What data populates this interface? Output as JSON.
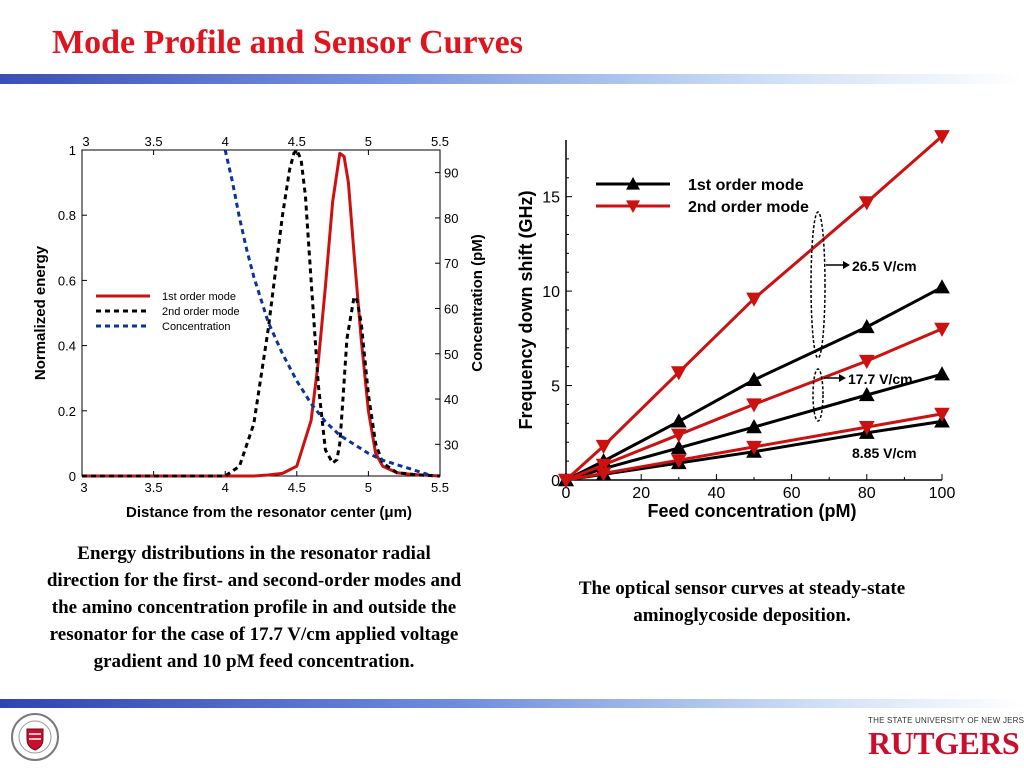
{
  "slide": {
    "title": "Mode Profile and Sensor Curves",
    "caption_left": "Energy distributions in the resonator radial direction for the first- and second-order modes and the amino concentration profile in and outside the resonator for the case of 17.7 V/cm applied voltage gradient and 10 pM feed concentration.",
    "caption_right": "The optical sensor curves at steady-state aminoglycoside deposition.",
    "logo_top": "THE STATE UNIVERSITY OF NEW JERSEY",
    "logo_main": "RUTGERS",
    "seal_label": "RUTGERS ENGINEERING"
  },
  "colors": {
    "title": "#e0141e",
    "red": "#cc1111",
    "black": "#000000",
    "blue": "#0a33a0"
  },
  "chart_data": [
    {
      "type": "line",
      "xlabel": "Distance from the resonator center (μm)",
      "ylabel": "Normalized energy",
      "y2label": "Concentration (pM)",
      "xlim": [
        3,
        5.5
      ],
      "ylim": [
        0,
        1
      ],
      "y2lim": [
        23,
        95
      ],
      "xticks": [
        "3",
        "3.5",
        "4",
        "4.5",
        "5",
        "5.5"
      ],
      "yticks": [
        "0",
        "0.2",
        "0.4",
        "0.6",
        "0.8",
        "1"
      ],
      "y2ticks": [
        "30",
        "40",
        "50",
        "60",
        "70",
        "80",
        "90"
      ],
      "legend_position": "center-left",
      "series": [
        {
          "name": "1st order mode",
          "axis": "left",
          "style": "solid",
          "color": "#cc1111",
          "x": [
            3.0,
            4.2,
            4.3,
            4.4,
            4.5,
            4.6,
            4.65,
            4.7,
            4.75,
            4.8,
            4.83,
            4.86,
            4.9,
            4.95,
            5.0,
            5.05,
            5.1,
            5.2,
            5.3,
            5.5
          ],
          "y": [
            0.0,
            0.0,
            0.003,
            0.008,
            0.03,
            0.17,
            0.35,
            0.58,
            0.84,
            0.99,
            0.98,
            0.9,
            0.68,
            0.42,
            0.2,
            0.07,
            0.03,
            0.01,
            0.005,
            0.0
          ]
        },
        {
          "name": "2nd order mode",
          "axis": "left",
          "style": "dashed",
          "color": "#000000",
          "x": [
            3.0,
            4.0,
            4.1,
            4.2,
            4.3,
            4.4,
            4.45,
            4.48,
            4.5,
            4.53,
            4.56,
            4.6,
            4.65,
            4.7,
            4.75,
            4.78,
            4.8,
            4.82,
            4.85,
            4.9,
            4.92,
            4.95,
            5.0,
            5.05,
            5.1,
            5.2,
            5.35,
            5.5
          ],
          "y": [
            0.0,
            0.0,
            0.03,
            0.16,
            0.45,
            0.8,
            0.94,
            0.99,
            1.0,
            0.97,
            0.86,
            0.6,
            0.28,
            0.08,
            0.04,
            0.05,
            0.1,
            0.22,
            0.42,
            0.55,
            0.54,
            0.47,
            0.25,
            0.1,
            0.04,
            0.01,
            0.003,
            0.0
          ]
        },
        {
          "name": "Concentration",
          "axis": "right",
          "style": "dashed",
          "color": "#0a33a0",
          "x": [
            4.0,
            4.05,
            4.1,
            4.15,
            4.2,
            4.3,
            4.4,
            4.5,
            4.6,
            4.7,
            4.8,
            4.9,
            5.0,
            5.1,
            5.2,
            5.3,
            5.45
          ],
          "y": [
            95,
            88,
            80,
            73,
            67,
            57,
            50,
            44,
            39,
            35,
            32,
            30,
            28,
            26.5,
            25.5,
            24.5,
            23
          ]
        }
      ],
      "legend": [
        "1st order mode",
        "2nd order mode",
        "Concentration"
      ]
    },
    {
      "type": "line",
      "xlabel": "Feed concentration (pM)",
      "ylabel": "Frequency down shift (GHz)",
      "xlim": [
        0,
        100
      ],
      "ylim": [
        0,
        18
      ],
      "xticks": [
        "0",
        "20",
        "40",
        "60",
        "80",
        "100"
      ],
      "yticks": [
        "0",
        "5",
        "10",
        "15"
      ],
      "legend_position": "top-left",
      "legend": [
        "1st order mode",
        "2nd order mode"
      ],
      "annotations": [
        "26.5 V/cm",
        "17.7 V/cm",
        "8.85 V/cm"
      ],
      "series": [
        {
          "name": "1st order mode",
          "field": "26.5 V/cm",
          "color": "#000000",
          "marker": "triangle-up",
          "x": [
            0,
            10,
            30,
            50,
            80,
            100
          ],
          "y": [
            0,
            1.0,
            3.1,
            5.3,
            8.1,
            10.2
          ]
        },
        {
          "name": "2nd order mode",
          "field": "26.5 V/cm",
          "color": "#cc1111",
          "marker": "triangle-down",
          "x": [
            0,
            10,
            30,
            50,
            80,
            100
          ],
          "y": [
            0,
            1.8,
            5.7,
            9.6,
            14.7,
            18.2
          ]
        },
        {
          "name": "1st order mode",
          "field": "17.7 V/cm",
          "color": "#000000",
          "marker": "triangle-up",
          "x": [
            0,
            10,
            30,
            50,
            80,
            100
          ],
          "y": [
            0,
            0.6,
            1.7,
            2.8,
            4.5,
            5.6
          ]
        },
        {
          "name": "2nd order mode",
          "field": "17.7 V/cm",
          "color": "#cc1111",
          "marker": "triangle-down",
          "x": [
            0,
            10,
            30,
            50,
            80,
            100
          ],
          "y": [
            0,
            0.8,
            2.4,
            4.0,
            6.3,
            8.0
          ]
        },
        {
          "name": "1st order mode",
          "field": "8.85 V/cm",
          "color": "#000000",
          "marker": "triangle-up",
          "x": [
            0,
            10,
            30,
            50,
            80,
            100
          ],
          "y": [
            0,
            0.3,
            0.9,
            1.5,
            2.5,
            3.1
          ]
        },
        {
          "name": "2nd order mode",
          "field": "8.85 V/cm",
          "color": "#cc1111",
          "marker": "triangle-down",
          "x": [
            0,
            10,
            30,
            50,
            80,
            100
          ],
          "y": [
            0,
            0.35,
            1.05,
            1.75,
            2.8,
            3.5
          ]
        }
      ]
    }
  ]
}
